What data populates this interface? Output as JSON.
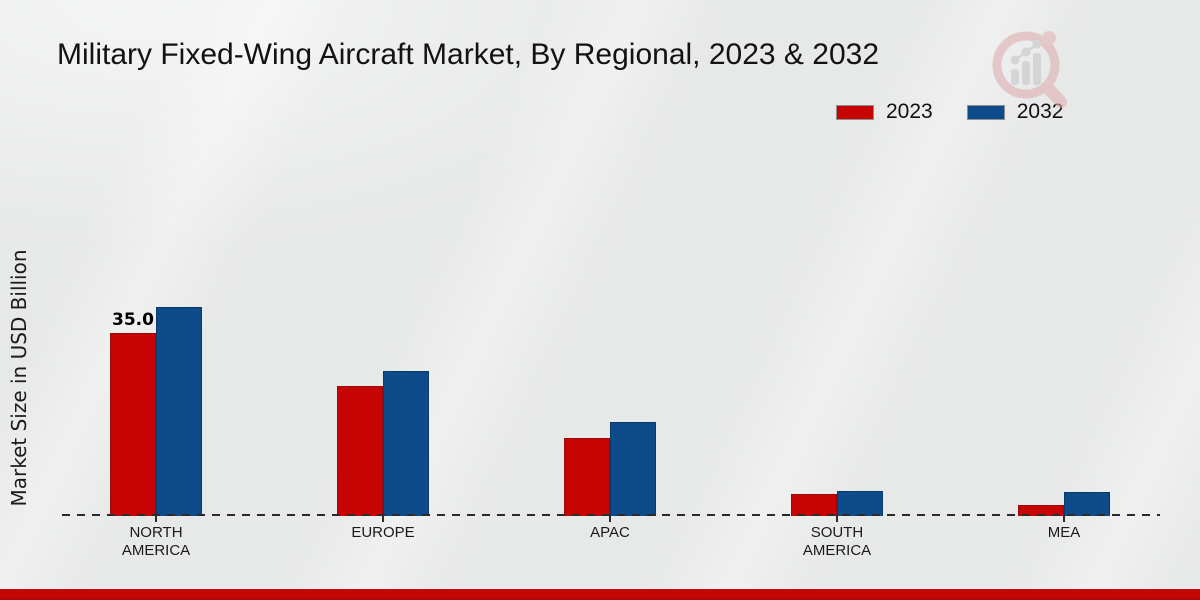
{
  "title": "Military Fixed-Wing Aircraft Market, By Regional, 2023 & 2032",
  "y_axis_label": "Market Size in USD Billion",
  "legend": {
    "items": [
      {
        "label": "2023",
        "color": "#c70404",
        "edge_color": "#9b0a0a"
      },
      {
        "label": "2032",
        "color": "#0d4b8a",
        "edge_color": "#0a3a66"
      }
    ]
  },
  "chart_data": {
    "type": "bar",
    "title": "Military Fixed-Wing Aircraft Market, By Regional, 2023 & 2032",
    "ylabel": "Market Size in USD Billion",
    "categories": [
      "NORTH AMERICA",
      "EUROPE",
      "APAC",
      "SOUTH AMERICA",
      "MEA"
    ],
    "series": [
      {
        "name": "2023",
        "color": "#c70404",
        "edge_color": "#9b0a0a",
        "values": [
          35.0,
          24.8,
          14.9,
          4.2,
          2.1
        ]
      },
      {
        "name": "2032",
        "color": "#0d4b8a",
        "edge_color": "#0a3a66",
        "values": [
          40.0,
          27.8,
          18.0,
          4.8,
          4.6
        ]
      }
    ],
    "data_labels": [
      {
        "series": "2023",
        "category": "NORTH AMERICA",
        "text": "35.0"
      }
    ],
    "legend_position": "top-right",
    "baseline_style": "dashed",
    "grid": false
  },
  "colors": {
    "accent_red": "#c70404",
    "accent_blue": "#0d4b8a",
    "footer_band": "#c40505",
    "background": "#e7e8e8",
    "watermark_pink": "#dfaeb1",
    "watermark_gray": "#c6c6ca"
  }
}
